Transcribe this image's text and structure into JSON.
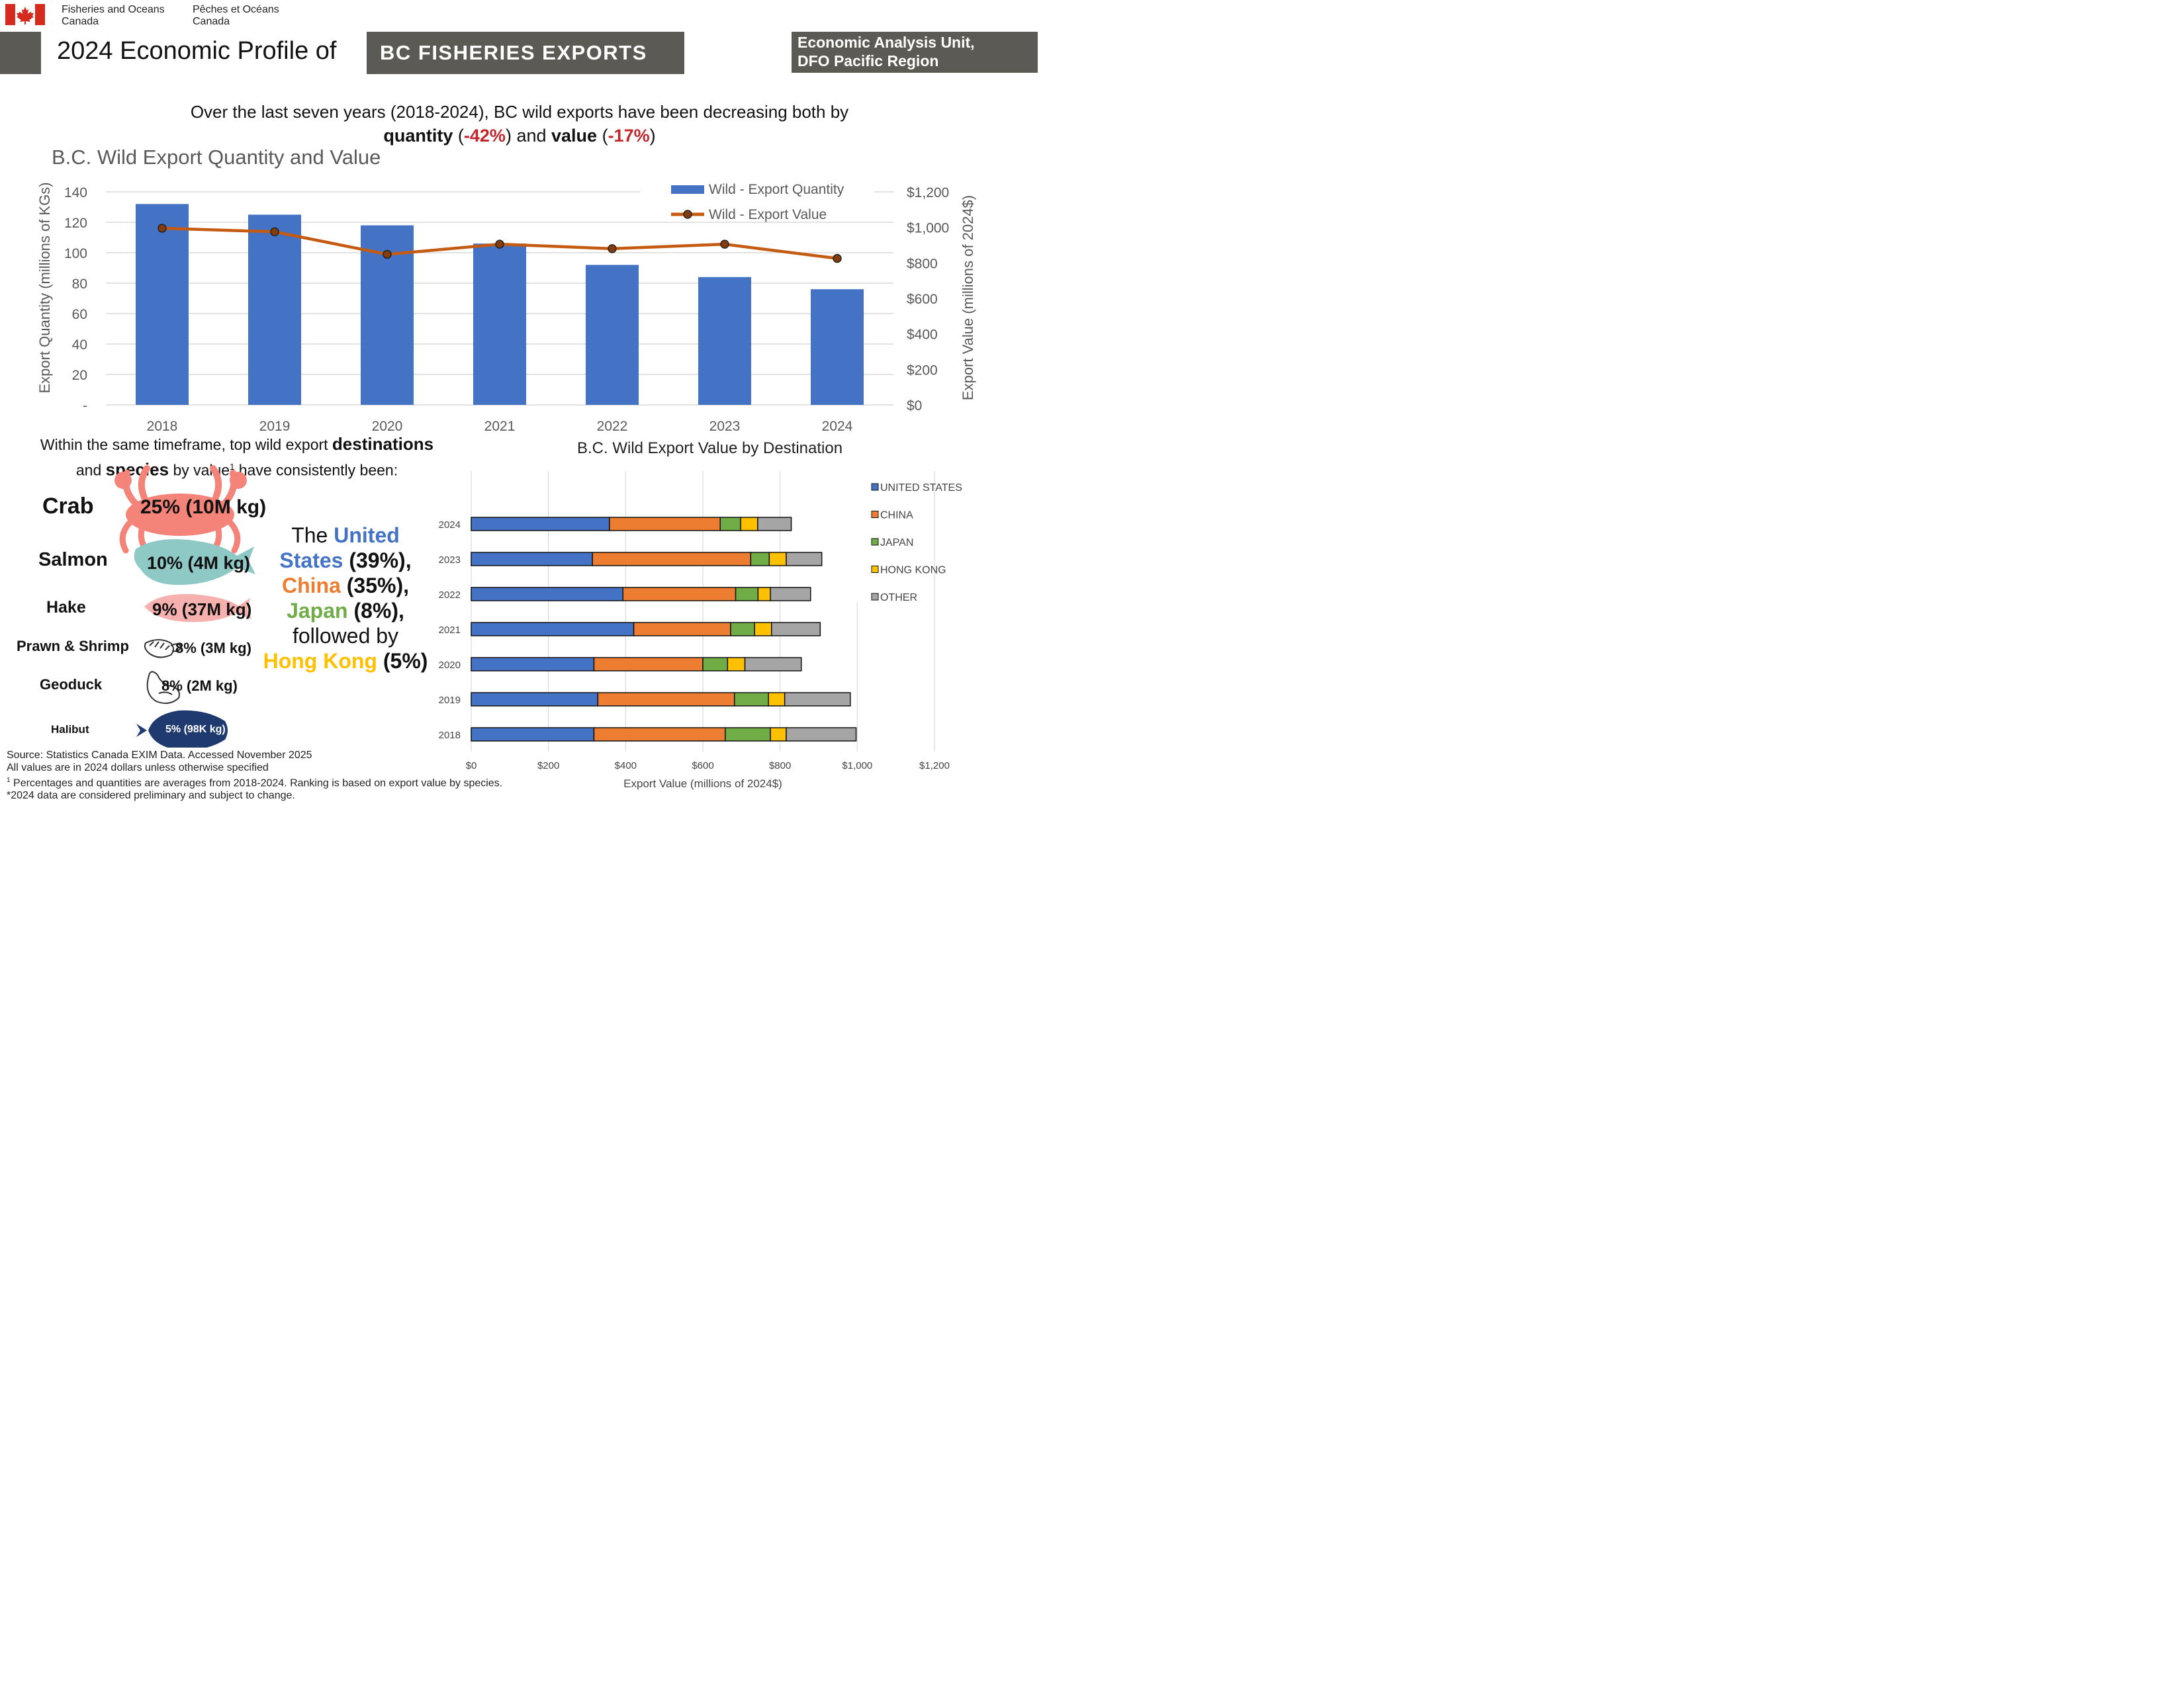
{
  "header": {
    "dept_en_1": "Fisheries and Oceans",
    "dept_en_2": "Canada",
    "dept_fr_1": "Pêches et Océans",
    "dept_fr_2": "Canada",
    "title": "2024 Economic Profile of",
    "banner": "BC FISHERIES EXPORTS",
    "unit_1": "Economic Analysis Unit,",
    "unit_2": "DFO Pacific Region"
  },
  "headline": {
    "line1": "Over the last seven years (2018-2024), BC wild exports have been decreasing both by",
    "quantity_word": "quantity",
    "quantity_pct": "-42%",
    "and_word": "and",
    "value_word": "value",
    "value_pct": "-17%"
  },
  "species_intro": {
    "p1": "Within the same timeframe, top wild export",
    "destinations_word": "destinations",
    "p2": "and",
    "species_word": "species",
    "p3": "by value",
    "sup": "1",
    "p4": "have consistently been:"
  },
  "species": [
    {
      "name": "Crab",
      "stat": "25% (10M kg)",
      "icon": "crab-icon"
    },
    {
      "name": "Salmon",
      "stat": "10% (4M kg)",
      "icon": "salmon-icon"
    },
    {
      "name": "Hake",
      "stat": "9% (37M kg)",
      "icon": "hake-icon"
    },
    {
      "name": "Prawn & Shrimp",
      "stat": "8% (3M kg)",
      "icon": "shrimp-icon"
    },
    {
      "name": "Geoduck",
      "stat": "8% (2M kg)",
      "icon": "geoduck-icon"
    },
    {
      "name": "Halibut",
      "stat": "5% (98K kg)",
      "icon": "halibut-icon"
    }
  ],
  "destinations_summary": {
    "the": "The",
    "us": "United States",
    "us_pct": "(39%),",
    "china": "China",
    "china_pct": "(35%),",
    "japan": "Japan",
    "japan_pct": "(8%),",
    "followed": "followed by",
    "hk": "Hong Kong",
    "hk_pct": "(5%)"
  },
  "footnotes": {
    "source": "Source: Statistics Canada EXIM Data. Accessed November 2025",
    "dollars": "All values are in 2024 dollars unless otherwise specified",
    "note1_sup": "1",
    "note1": "Percentages and quantities are averages from 2018-2024. Ranking is based on export value by species.",
    "note2": "*2024 data are considered preliminary and subject to change."
  },
  "colors": {
    "header_gray": "#5b5a54",
    "bar_blue": "#4472c4",
    "value_line": "#c55a11",
    "highlight_red": "#c0282d",
    "us": "#4472c4",
    "china": "#ed7d31",
    "japan": "#70ad47",
    "hong_kong": "#ffc000",
    "other": "#a5a5a5",
    "flag_red": "#d52b1e"
  },
  "chart_data": [
    {
      "type": "bar",
      "title": "B.C. Wild Export Quantity and Value",
      "categories": [
        "2018",
        "2019",
        "2020",
        "2021",
        "2022",
        "2023",
        "2024"
      ],
      "ylabel": "Export Quantity (millions of KGs)",
      "y2label": "Export Value (millions of 2024$)",
      "ylim": [
        0,
        140
      ],
      "yticks": [
        "-",
        "20",
        "40",
        "60",
        "80",
        "100",
        "120",
        "140"
      ],
      "y2lim": [
        0,
        1200
      ],
      "y2ticks": [
        "$0",
        "$200",
        "$400",
        "$600",
        "$800",
        "$1,000",
        "$1,200"
      ],
      "grid": true,
      "legend_position": "top-right",
      "series": [
        {
          "name": "Wild - Export Quantity",
          "type": "bar",
          "axis": "left",
          "values": [
            132,
            125,
            118,
            106,
            92,
            84,
            76
          ]
        },
        {
          "name": "Wild - Export Value",
          "type": "line",
          "axis": "right",
          "values": [
            995,
            975,
            848,
            905,
            880,
            905,
            825
          ]
        }
      ]
    },
    {
      "type": "bar",
      "orientation": "horizontal",
      "stacked": true,
      "title": "B.C. Wild Export Value by Destination",
      "xlabel": "Export Value (millions of 2024$)",
      "categories": [
        "2024",
        "2023",
        "2022",
        "2021",
        "2020",
        "2019",
        "2018"
      ],
      "xlim": [
        0,
        1200
      ],
      "xticks": [
        "$0",
        "$200",
        "$400",
        "$600",
        "$800",
        "$1,000",
        "$1,200"
      ],
      "grid": true,
      "legend_position": "right",
      "series": [
        {
          "name": "UNITED STATES",
          "values": [
            358,
            314,
            393,
            421,
            318,
            328,
            318
          ]
        },
        {
          "name": "CHINA",
          "values": [
            287,
            410,
            292,
            251,
            282,
            354,
            340
          ]
        },
        {
          "name": "JAPAN",
          "values": [
            53,
            48,
            58,
            62,
            64,
            88,
            117
          ]
        },
        {
          "name": "HONG KONG",
          "values": [
            44,
            44,
            32,
            44,
            45,
            42,
            41
          ]
        },
        {
          "name": "OTHER",
          "values": [
            87,
            92,
            104,
            126,
            146,
            170,
            181
          ]
        }
      ]
    }
  ]
}
